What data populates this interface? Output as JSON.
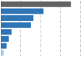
{
  "chart_data": {
    "type": "bar",
    "orientation": "horizontal",
    "categories": [
      null,
      null,
      null,
      null,
      null,
      null,
      null,
      null
    ],
    "values": [
      16800,
      10200,
      7800,
      7200,
      2600,
      1900,
      1400,
      700
    ],
    "colors": [
      "#636363",
      "#2e75b6",
      "#2e75b6",
      "#2e75b6",
      "#2e75b6",
      "#2e75b6",
      "#2e75b6",
      "#a8c8e8"
    ],
    "xlim": [
      0,
      19000
    ],
    "xticks": [
      0,
      4750,
      9500,
      14250,
      19000
    ],
    "grid": true,
    "tick_labels": false
  }
}
